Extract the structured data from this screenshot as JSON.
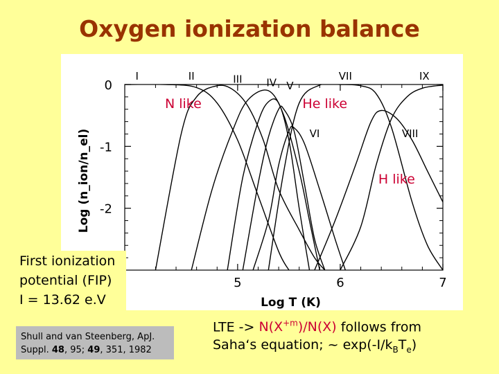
{
  "page": {
    "title": "Oxygen ionization balance",
    "colors": {
      "background": "#ffff99",
      "title": "#993300",
      "annotation": "#cc0033",
      "reference_box": "#bcbcbc"
    }
  },
  "fip_box": {
    "line1": "First ionization",
    "line2": "potential (FIP)",
    "line3": "I = 13.62 e.V"
  },
  "reference": {
    "line1": "Shull and van Steenberg, ApJ.",
    "line2_prefix": "Suppl. ",
    "line2_bold1": "48",
    "line2_mid": ", 95; ",
    "line2_bold2": "49",
    "line2_suffix": ", 351, 1982"
  },
  "lte_note": {
    "line1_prefix": "LTE  -> ",
    "line1_red": "N(X",
    "line1_sup": "+m",
    "line1_red_tail": ")/N(X)",
    "line1_suffix": " follows from",
    "line2_prefix": "Saha‘s equation;  ~  exp(-I/k",
    "line2_sub1": "B",
    "line2_mid": "T",
    "line2_sub2": "e",
    "line2_suffix": ")"
  },
  "chart_data": {
    "type": "line",
    "title": "Oxygen ionization balance",
    "xlabel": "Log T (K)",
    "ylabel": "Log (n_ion/n_el)",
    "xlim": [
      3.9,
      7.0
    ],
    "ylim": [
      -3.0,
      0.0
    ],
    "x_ticks": [
      "5",
      "6",
      "7"
    ],
    "y_ticks": [
      "0",
      "-1",
      "-2"
    ],
    "annotations": [
      "N like",
      "He like",
      "H like"
    ],
    "series": [
      {
        "name": "I",
        "x": [
          3.9,
          4.3,
          4.6,
          4.8,
          5.0,
          5.2,
          5.4,
          5.5
        ],
        "y": [
          0.0,
          0.0,
          -0.05,
          -0.3,
          -0.9,
          -1.8,
          -2.7,
          -3.0
        ]
      },
      {
        "name": "II",
        "x": [
          4.2,
          4.45,
          4.6,
          4.8,
          4.95,
          5.1,
          5.25,
          5.4,
          5.6,
          5.75,
          5.85
        ],
        "y": [
          -3.0,
          -0.8,
          -0.2,
          -0.02,
          -0.08,
          -0.35,
          -0.9,
          -1.7,
          -2.35,
          -2.8,
          -3.0
        ]
      },
      {
        "name": "III",
        "x": [
          4.55,
          4.75,
          4.95,
          5.1,
          5.3,
          5.45,
          5.6,
          5.7,
          5.8
        ],
        "y": [
          -3.0,
          -1.7,
          -0.75,
          -0.25,
          -0.1,
          -0.5,
          -1.4,
          -2.2,
          -3.0
        ]
      },
      {
        "name": "IV",
        "x": [
          4.9,
          5.05,
          5.2,
          5.3,
          5.4,
          5.5,
          5.6,
          5.7
        ],
        "y": [
          -3.0,
          -1.5,
          -0.6,
          -0.28,
          -0.3,
          -0.9,
          -2.0,
          -3.0
        ]
      },
      {
        "name": "V",
        "x": [
          5.05,
          5.2,
          5.3,
          5.4,
          5.45,
          5.55,
          5.65,
          5.75,
          5.85
        ],
        "y": [
          -3.0,
          -1.6,
          -0.85,
          -0.4,
          -0.4,
          -0.75,
          -1.6,
          -2.5,
          -3.0
        ]
      },
      {
        "name": "VI",
        "x": [
          5.15,
          5.3,
          5.4,
          5.5,
          5.55,
          5.65,
          5.8,
          5.95,
          6.05
        ],
        "y": [
          -3.0,
          -2.2,
          -1.3,
          -0.75,
          -0.7,
          -0.95,
          -1.7,
          -2.5,
          -3.0
        ]
      },
      {
        "name": "VII",
        "x": [
          5.3,
          5.45,
          5.6,
          5.8,
          6.0,
          6.2,
          6.35,
          6.5,
          6.7,
          6.85,
          7.0
        ],
        "y": [
          -3.0,
          -1.4,
          -0.3,
          -0.01,
          0.0,
          -0.02,
          -0.15,
          -0.7,
          -1.9,
          -2.6,
          -3.0
        ]
      },
      {
        "name": "VIII",
        "x": [
          5.75,
          5.95,
          6.15,
          6.3,
          6.4,
          6.55,
          6.7,
          6.85,
          7.0
        ],
        "y": [
          -3.0,
          -2.2,
          -1.3,
          -0.6,
          -0.42,
          -0.55,
          -0.9,
          -1.4,
          -1.9
        ]
      },
      {
        "name": "IX",
        "x": [
          6.0,
          6.2,
          6.35,
          6.5,
          6.65,
          6.8,
          7.0
        ],
        "y": [
          -3.0,
          -2.3,
          -1.3,
          -0.55,
          -0.2,
          -0.06,
          -0.01
        ]
      }
    ]
  }
}
